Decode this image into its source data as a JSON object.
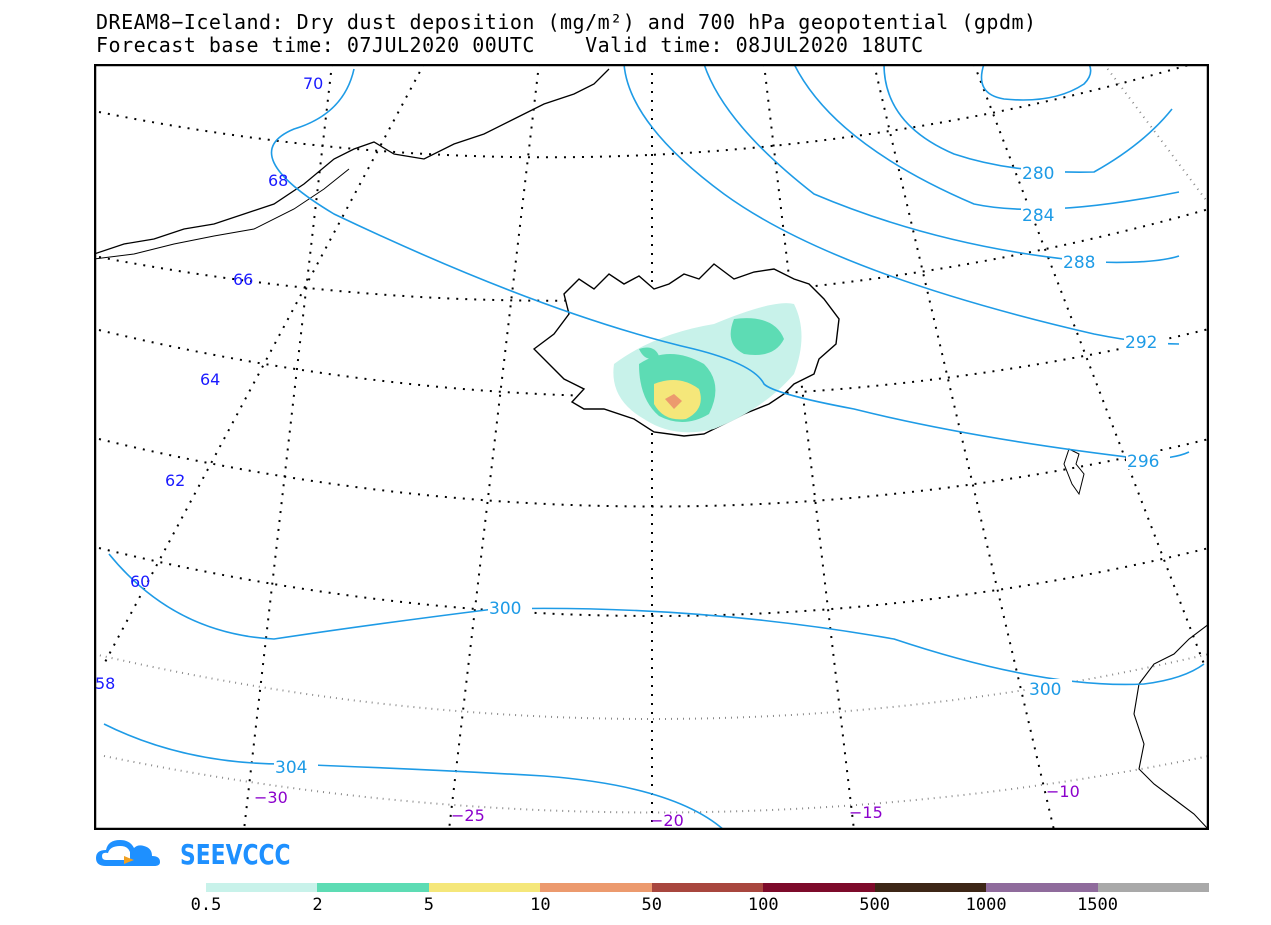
{
  "header": {
    "title_line1": "DREAM8−Iceland: Dry dust deposition (mg/m²) and 700 hPa geopotential (gpdm)",
    "title_line2": "Forecast base time: 07JUL2020 00UTC    Valid time: 08JUL2020 18UTC"
  },
  "map": {
    "region": "Iceland and surrounding North Atlantic",
    "graticule": {
      "lat_labels": [
        "70",
        "68",
        "66",
        "64",
        "62",
        "60",
        "58"
      ],
      "lon_labels": [
        "−30",
        "−25",
        "−20",
        "−15",
        "−10"
      ],
      "lat_label_color": "#1a1aff",
      "lon_label_color": "#8b00cc"
    },
    "contours": {
      "field": "700 hPa geopotential",
      "unit": "gpdm",
      "color": "#1e9be6",
      "labels": [
        "280",
        "284",
        "288",
        "292",
        "296",
        "300",
        "300",
        "304"
      ]
    },
    "dust_field": {
      "field": "Dry dust deposition",
      "unit": "mg/m²",
      "location": "southern Iceland"
    }
  },
  "logo": {
    "text": "SEEVCCC"
  },
  "legend": {
    "labels": [
      "0.5",
      "2",
      "5",
      "10",
      "50",
      "100",
      "500",
      "1000",
      "1500"
    ],
    "colors": [
      "#c8f2ea",
      "#5ddcb4",
      "#f5e77a",
      "#ec9a6e",
      "#a8463e",
      "#7d0a2a",
      "#3d2616",
      "#8f6b9c",
      "#a9a9a9"
    ]
  }
}
